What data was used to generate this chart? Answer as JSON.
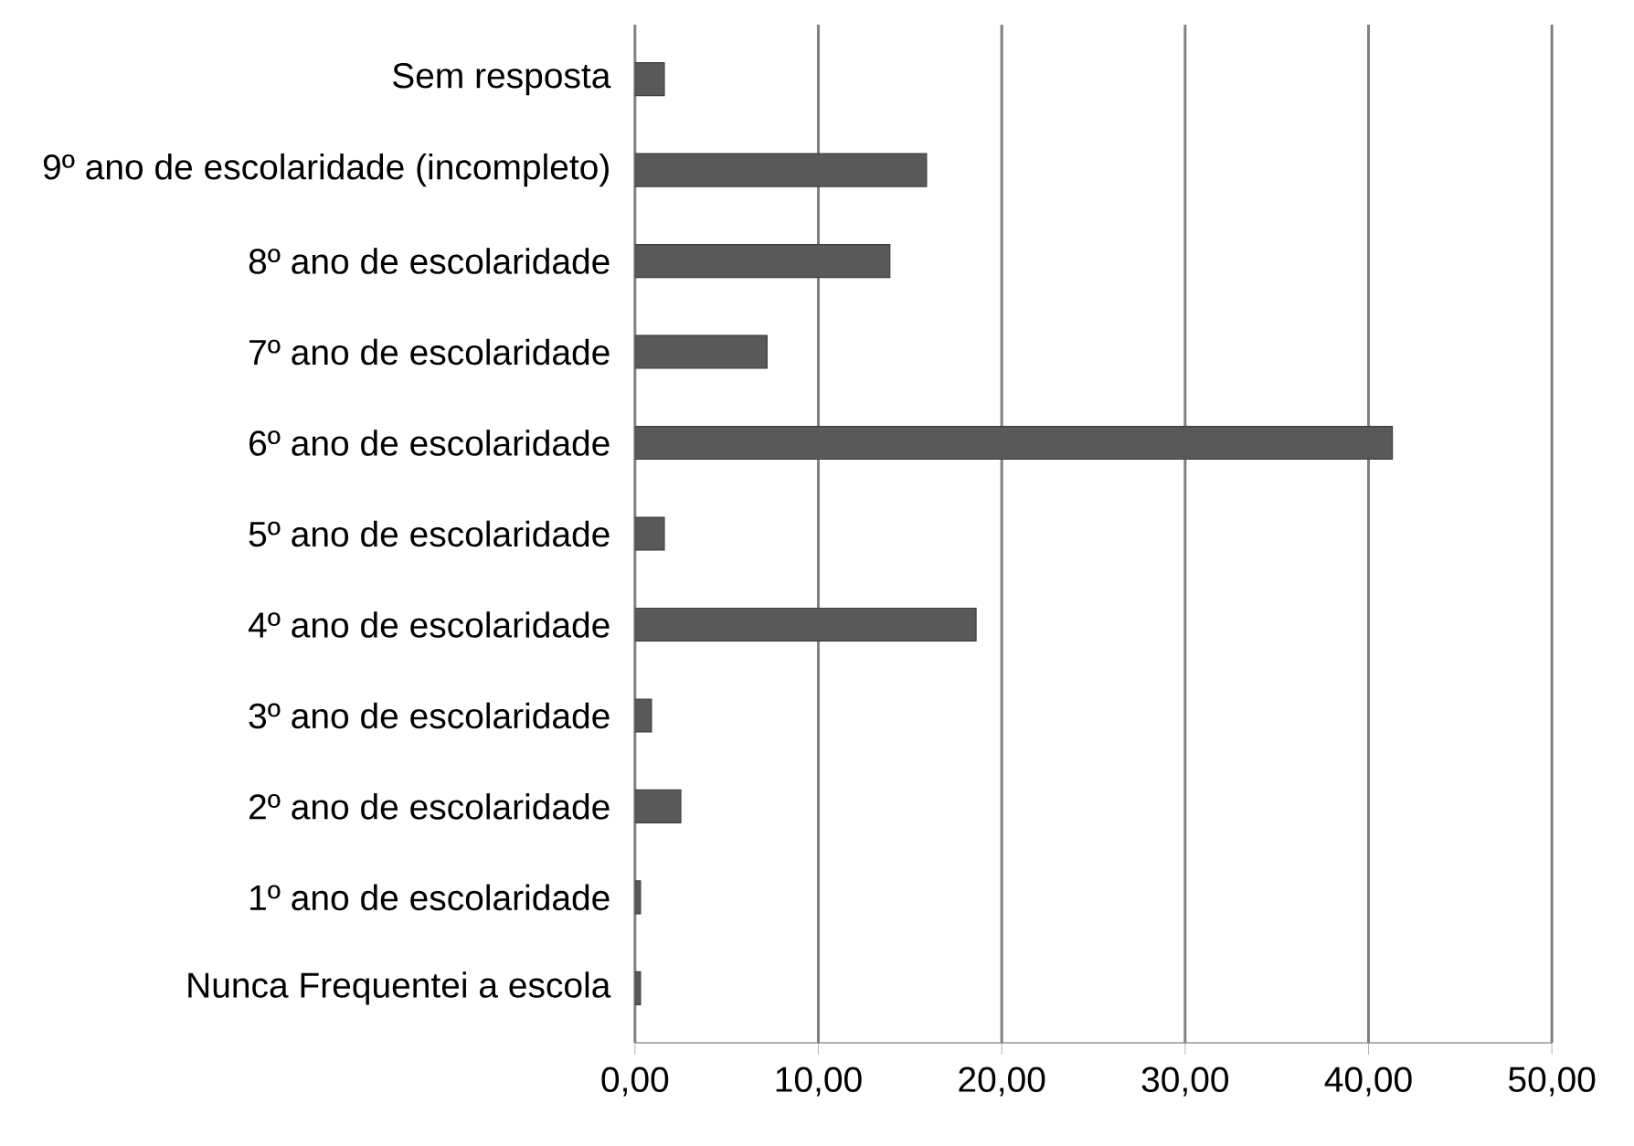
{
  "chart_data": {
    "type": "bar",
    "orientation": "horizontal",
    "categories": [
      "Sem resposta",
      "9º ano de escolaridade (incompleto)",
      "8º ano de escolaridade",
      "7º ano de escolaridade",
      "6º ano de escolaridade",
      "5º ano de escolaridade",
      "4º ano de escolaridade",
      "3º ano de escolaridade",
      "2º ano de escolaridade",
      "1º ano de escolaridade",
      "Nunca Frequentei a escola"
    ],
    "values": [
      1.6,
      15.9,
      13.9,
      7.2,
      41.3,
      1.6,
      18.6,
      0.9,
      2.5,
      0.3,
      0.3
    ],
    "color": "#595959",
    "xlim": [
      0,
      50
    ],
    "xticks": [
      {
        "value": 0,
        "label": "0,00"
      },
      {
        "value": 10,
        "label": "10,00"
      },
      {
        "value": 20,
        "label": "20,00"
      },
      {
        "value": 30,
        "label": "30,00"
      },
      {
        "value": 40,
        "label": "40,00"
      },
      {
        "value": 50,
        "label": "50,00"
      }
    ],
    "grid": "x"
  }
}
